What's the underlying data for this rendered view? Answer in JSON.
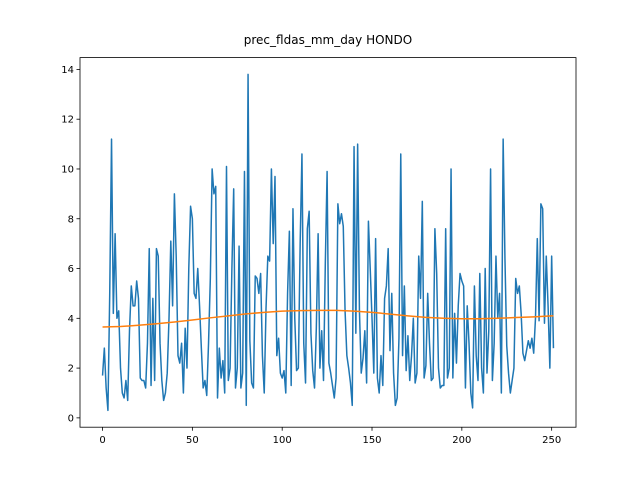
{
  "chart_data": {
    "type": "line",
    "title": "prec_fldas_mm_day HONDO",
    "xlim": [
      -12.55,
      263.55
    ],
    "ylim": [
      -0.375,
      14.475
    ],
    "xticks": [
      0,
      50,
      100,
      150,
      200,
      250
    ],
    "yticks": [
      0,
      2,
      4,
      6,
      8,
      10,
      12,
      14
    ],
    "series": [
      {
        "color": "#1f77b4",
        "x": [
          0,
          1,
          2,
          3,
          4,
          5,
          6,
          7,
          8,
          9,
          10,
          11,
          12,
          13,
          14,
          15,
          16,
          17,
          18,
          19,
          20,
          21,
          22,
          23,
          24,
          25,
          26,
          27,
          28,
          29,
          30,
          31,
          32,
          33,
          34,
          35,
          36,
          37,
          38,
          39,
          40,
          41,
          42,
          43,
          44,
          45,
          46,
          47,
          48,
          49,
          50,
          51,
          52,
          53,
          54,
          55,
          56,
          57,
          58,
          59,
          60,
          61,
          62,
          63,
          64,
          65,
          66,
          67,
          68,
          69,
          70,
          71,
          72,
          73,
          74,
          75,
          76,
          77,
          78,
          79,
          80,
          81,
          82,
          83,
          84,
          85,
          86,
          87,
          88,
          89,
          90,
          91,
          92,
          93,
          94,
          95,
          96,
          97,
          98,
          99,
          100,
          101,
          102,
          103,
          104,
          105,
          106,
          107,
          108,
          109,
          110,
          111,
          112,
          113,
          114,
          115,
          116,
          117,
          118,
          119,
          120,
          121,
          122,
          123,
          124,
          125,
          126,
          127,
          128,
          129,
          130,
          131,
          132,
          133,
          134,
          135,
          136,
          137,
          138,
          139,
          140,
          141,
          142,
          143,
          144,
          145,
          146,
          147,
          148,
          149,
          150,
          151,
          152,
          153,
          154,
          155,
          156,
          157,
          158,
          159,
          160,
          161,
          162,
          163,
          164,
          165,
          166,
          167,
          168,
          169,
          170,
          171,
          172,
          173,
          174,
          175,
          176,
          177,
          178,
          179,
          180,
          181,
          182,
          183,
          184,
          185,
          186,
          187,
          188,
          189,
          190,
          191,
          192,
          193,
          194,
          195,
          196,
          197,
          198,
          199,
          200,
          201,
          202,
          203,
          204,
          205,
          206,
          207,
          208,
          209,
          210,
          211,
          212,
          213,
          214,
          215,
          216,
          217,
          218,
          219,
          220,
          221,
          222,
          223,
          224,
          225,
          226,
          227,
          228,
          229,
          230,
          231,
          232,
          233,
          234,
          235,
          236,
          237,
          238,
          239,
          240,
          241,
          242,
          243,
          244,
          245,
          246,
          247,
          248,
          249,
          250,
          251
        ],
        "values": [
          1.7,
          2.8,
          1.2,
          0.3,
          5.0,
          11.2,
          4.2,
          7.4,
          4.0,
          4.3,
          2.0,
          1.0,
          0.8,
          1.5,
          0.7,
          3.5,
          5.3,
          4.5,
          4.5,
          5.5,
          4.8,
          1.6,
          1.5,
          1.5,
          1.2,
          3.0,
          6.8,
          1.3,
          4.8,
          1.5,
          6.8,
          6.5,
          3.0,
          1.5,
          0.7,
          1.0,
          1.8,
          4.0,
          7.1,
          4.5,
          9.0,
          6.5,
          2.5,
          2.2,
          3.0,
          1.0,
          3.6,
          2.0,
          6.0,
          8.5,
          8.0,
          5.0,
          4.8,
          6.0,
          4.5,
          2.8,
          1.2,
          1.5,
          0.9,
          3.0,
          5.6,
          10.0,
          9.0,
          9.3,
          0.8,
          2.8,
          1.6,
          2.3,
          1.0,
          10.1,
          1.5,
          2.0,
          6.0,
          9.2,
          1.2,
          2.0,
          6.9,
          1.2,
          1.8,
          9.9,
          0.5,
          13.8,
          3.1,
          1.4,
          1.2,
          5.7,
          5.6,
          5.0,
          5.8,
          2.5,
          1.0,
          4.4,
          6.5,
          6.3,
          10.0,
          7.0,
          9.7,
          2.5,
          3.2,
          1.8,
          1.6,
          1.9,
          1.0,
          5.0,
          7.5,
          1.3,
          8.4,
          4.0,
          1.9,
          2.0,
          7.0,
          10.6,
          3.0,
          1.4,
          7.6,
          8.3,
          3.4,
          1.9,
          1.2,
          3.6,
          7.4,
          2.0,
          3.5,
          1.5,
          6.2,
          9.9,
          2.2,
          1.8,
          1.3,
          0.8,
          1.6,
          8.6,
          7.8,
          8.2,
          7.7,
          4.3,
          2.5,
          2.0,
          1.4,
          0.5,
          10.9,
          3.4,
          11.0,
          4.3,
          1.8,
          2.4,
          3.5,
          1.4,
          7.9,
          6.0,
          4.0,
          1.8,
          7.2,
          1.6,
          1.0,
          2.5,
          1.3,
          4.8,
          5.3,
          6.8,
          2.7,
          5.0,
          1.8,
          0.5,
          0.8,
          3.2,
          10.6,
          2.5,
          5.3,
          1.9,
          3.3,
          1.5,
          2.5,
          4.0,
          1.4,
          1.8,
          6.5,
          4.8,
          8.7,
          1.6,
          2.1,
          5.0,
          3.0,
          1.5,
          1.6,
          7.6,
          5.8,
          2.0,
          1.2,
          1.3,
          1.3,
          7.6,
          1.6,
          2.0,
          10.0,
          1.6,
          4.2,
          2.2,
          4.5,
          5.8,
          5.5,
          5.3,
          1.2,
          4.5,
          3.0,
          1.0,
          0.4,
          5.3,
          2.5,
          1.5,
          5.8,
          2.0,
          1.0,
          6.0,
          1.8,
          3.5,
          10.0,
          1.5,
          3.0,
          6.5,
          4.0,
          5.0,
          1.0,
          11.2,
          6.4,
          2.9,
          1.8,
          1.0,
          1.5,
          2.0,
          5.6,
          5.0,
          5.3,
          4.2,
          2.6,
          2.3,
          2.7,
          3.1,
          2.8,
          3.2,
          2.6,
          4.0,
          7.2,
          3.9,
          8.6,
          8.4,
          3.8,
          6.5,
          4.5,
          2.0,
          6.5,
          2.8
        ]
      },
      {
        "color": "#ff7f0e",
        "x": [
          0,
          10,
          20,
          30,
          40,
          50,
          60,
          70,
          80,
          90,
          100,
          110,
          120,
          130,
          140,
          150,
          160,
          170,
          180,
          190,
          200,
          210,
          220,
          230,
          240,
          250,
          251
        ],
        "values": [
          3.65,
          3.67,
          3.72,
          3.78,
          3.85,
          3.93,
          4.02,
          4.1,
          4.18,
          4.24,
          4.29,
          4.31,
          4.32,
          4.32,
          4.29,
          4.24,
          4.17,
          4.1,
          4.04,
          4.0,
          3.98,
          3.98,
          4.0,
          4.03,
          4.06,
          4.1,
          4.1
        ]
      }
    ]
  }
}
